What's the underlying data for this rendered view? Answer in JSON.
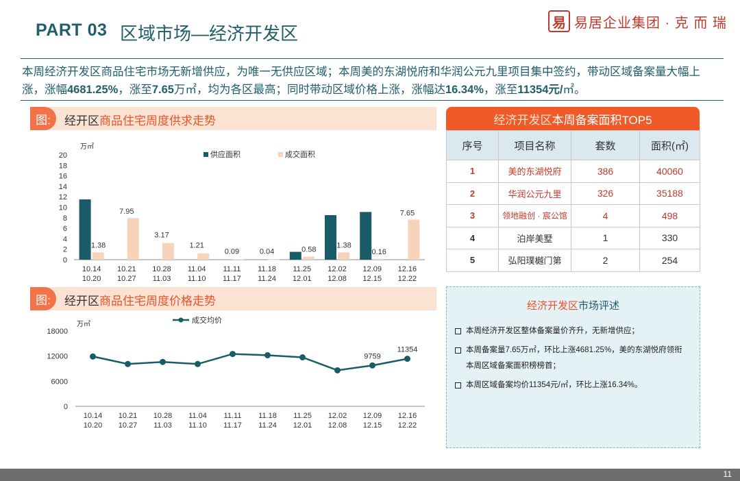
{
  "header": {
    "part": "PART 03",
    "title": "区域市场—经济开发区",
    "logo_seal": "易",
    "logo_text": "易居企业集团 · 克 而 瑞"
  },
  "summary": {
    "text_1": "本周经济开发区商品住宅市场无新增供应，为唯一无供应区域；本周美的东湖悦府和华润公元九里项目集中签约，带动区域备案量大幅上涨，涨幅",
    "bold_1": "4681.25%",
    "text_2": "，涨至",
    "bold_2": "7.65",
    "text_3": "万㎡，均为各区最高；同时带动区域价格上涨，涨幅达",
    "bold_3": "16.34%",
    "text_4": "，涨至",
    "bold_4": "11354元/",
    "text_5": "㎡。"
  },
  "section1": {
    "tag": "图:",
    "title_pre": "经开区",
    "title_acc": "商品住宅周度供求走势"
  },
  "section2": {
    "tag": "图:",
    "title_pre": "经开区",
    "title_acc": "商品住宅周度价格走势"
  },
  "chart_data": [
    {
      "type": "bar",
      "ylabel": "万㎡",
      "ylim": [
        0,
        20
      ],
      "yticks": [
        0,
        2,
        4,
        6,
        8,
        10,
        12,
        14,
        16,
        18,
        20
      ],
      "categories": [
        [
          "10.14",
          "10.20"
        ],
        [
          "10.21",
          "10.27"
        ],
        [
          "10.28",
          "11.03"
        ],
        [
          "11.04",
          "11.10"
        ],
        [
          "11.11",
          "11.17"
        ],
        [
          "11.18",
          "11.24"
        ],
        [
          "11.25",
          "12.01"
        ],
        [
          "12.02",
          "12.08"
        ],
        [
          "12.09",
          "12.15"
        ],
        [
          "12.16",
          "12.22"
        ]
      ],
      "series": [
        {
          "name": "供应面积",
          "color": "#1a5b68",
          "values": [
            11.5,
            0,
            0,
            0,
            0,
            0,
            1.5,
            8.5,
            9.1,
            0
          ],
          "labels": [
            "",
            "",
            "",
            "",
            "",
            "",
            "",
            "",
            "",
            ""
          ]
        },
        {
          "name": "成交面积",
          "color": "#f8d3bb",
          "values": [
            1.38,
            7.95,
            3.17,
            1.21,
            0.09,
            0.04,
            0.58,
            1.38,
            0.16,
            7.65
          ],
          "labels": [
            "1.38",
            "7.95",
            "3.17",
            "1.21",
            "0.09",
            "0.04",
            "0.58",
            "1.38",
            "0.16",
            "7.65"
          ]
        }
      ],
      "legend": "top"
    },
    {
      "type": "line",
      "ylabel": "万㎡",
      "ylim": [
        0,
        18000
      ],
      "yticks": [
        0,
        6000,
        12000,
        18000
      ],
      "categories": [
        [
          "10.14",
          "10.20"
        ],
        [
          "10.21",
          "10.27"
        ],
        [
          "10.28",
          "11.03"
        ],
        [
          "11.04",
          "11.10"
        ],
        [
          "11.11",
          "11.17"
        ],
        [
          "11.18",
          "11.24"
        ],
        [
          "11.25",
          "12.01"
        ],
        [
          "12.02",
          "12.08"
        ],
        [
          "12.09",
          "12.15"
        ],
        [
          "12.16",
          "12.22"
        ]
      ],
      "series": [
        {
          "name": "成交均价",
          "color": "#1a5b68",
          "values": [
            11900,
            10100,
            10600,
            10100,
            12500,
            12200,
            11700,
            8600,
            9759,
            11354
          ],
          "labels": [
            "",
            "",
            "",
            "",
            "",
            "",
            "",
            "",
            "9759",
            "11354"
          ]
        }
      ],
      "legend": "top"
    }
  ],
  "top5": {
    "banner_acc": "经济开发区",
    "banner_rest": "本周备案面积TOP5",
    "headers": [
      "序号",
      "项目名称",
      "套数",
      "面积(㎡)"
    ],
    "rows": [
      {
        "rank": "1",
        "name": "美的东湖悦府",
        "units": "386",
        "area": "40060"
      },
      {
        "rank": "2",
        "name": "华润公元九里",
        "units": "326",
        "area": "35188"
      },
      {
        "rank": "3",
        "name": "领地融创 · 宸公馆",
        "units": "4",
        "area": "498"
      },
      {
        "rank": "4",
        "name": "泊岸美墅",
        "units": "1",
        "area": "330"
      },
      {
        "rank": "5",
        "name": "弘阳璞樾门第",
        "units": "2",
        "area": "254"
      }
    ]
  },
  "review": {
    "title_acc": "经济开发区",
    "title_rest": "市场评述",
    "items": [
      "本周经济开发区整体备案量价齐升，无新增供应；",
      "本周备案量7.65万㎡，环比上涨4681.25%，美的东湖悦府领衔本周区域备案面积榜榜首；",
      "本周区域备案均价11354元/㎡，环比上涨16.34%。"
    ]
  },
  "footer": {
    "page": "11"
  }
}
